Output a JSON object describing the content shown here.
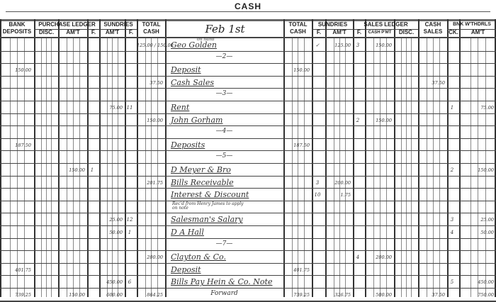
{
  "page": {
    "title": "CASH"
  },
  "headers": {
    "bank_deposits": "BANK DEPOSITS",
    "purchase_ledger": "PURCHASE LEDGER",
    "disc": "DISC.",
    "amt": "AM'T",
    "f": "F.",
    "sundries": "SUNDRIES",
    "total_cash": "TOTAL CASH",
    "date": "Feb 1st",
    "sales_ledger": "SALES LEDGER",
    "cash_pmt": "CASH P'MT",
    "cash_sales": "CASH SALES",
    "bnk_withdrawals": "BNK W'THDRLS",
    "ck": "CK."
  },
  "rows": [
    {
      "note": "on hand",
      "desc": "Geo Golden",
      "tc": "125.00 / 150.00",
      "rsf": "✓",
      "rsamt": "125.00",
      "slf": "3",
      "slpmt": "150.00"
    },
    {
      "desc": "—2—",
      "day": true
    },
    {
      "bd": "150.00",
      "desc": "Deposit",
      "rtc": "150.00"
    },
    {
      "tc": "37.50",
      "desc": "Cash Sales",
      "cs": "37.50"
    },
    {
      "desc": "—3—",
      "day": true
    },
    {
      "samt": "75.00",
      "sf": "11",
      "desc": "Rent",
      "ck": "1",
      "bamt": "75.00"
    },
    {
      "tc": "150.00",
      "desc": "John Gorham",
      "slf": "2",
      "slpmt": "150.00"
    },
    {
      "desc": "—4—",
      "day": true
    },
    {
      "bd": "187.50",
      "desc": "Deposits",
      "rtc": "187.50"
    },
    {
      "desc": "—5—",
      "day": true
    },
    {
      "pamt": "150.00",
      "pf": "1",
      "desc": "D Meyer & Bro",
      "ck": "2",
      "bamt": "150.00"
    },
    {
      "tc": "201.75",
      "desc": "Bills Receivable",
      "rsf": "3",
      "rsamt": "200.00"
    },
    {
      "desc": "Interest & Discount",
      "rsf": "10",
      "rsamt": "1.75"
    },
    {
      "desc": "",
      "note2": "Rec'd from Henry James to apply on note"
    },
    {
      "samt": "25.00",
      "sf": "12",
      "desc": "Salesman's Salary",
      "ck": "3",
      "bamt": "25.00"
    },
    {
      "samt": "50.00",
      "sf": "1",
      "desc": "D A Hall",
      "ck": "4",
      "bamt": "50.00"
    },
    {
      "desc": "—7—",
      "day": true
    },
    {
      "tc": "200.00",
      "desc": "Clayton & Co.",
      "slf": "4",
      "slpmt": "200.00"
    },
    {
      "bd": "401.75",
      "desc": "Deposit",
      "rtc": "401.75"
    },
    {
      "samt": "450.00",
      "sf": "6",
      "desc": "Bills Pay  Hein & Co. Note",
      "ck": "5",
      "bamt": "450.00"
    },
    {
      "bd": "739.25",
      "pamt": "150.00",
      "samt": "600.00",
      "tc": "864.25",
      "desc": "Forward",
      "day": true,
      "rtc": "739.25",
      "rsamt": "326.75",
      "slpmt": "500.00",
      "cs": "37.50",
      "bamt": "750.00"
    }
  ]
}
